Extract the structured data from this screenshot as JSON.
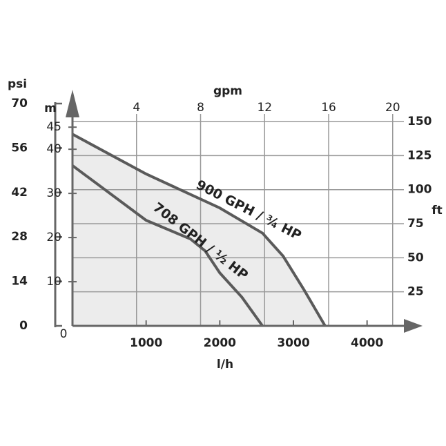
{
  "chart_data": {
    "type": "line",
    "x_label": "l/h",
    "x2_label": "gpm",
    "y_label": "m",
    "y2_label": "ft",
    "y3_label": "psi",
    "xlim": [
      0,
      4500
    ],
    "xticks": [
      0,
      1000,
      2000,
      3000,
      4000
    ],
    "x2lim": [
      0,
      20.7
    ],
    "x2ticks": [
      4,
      8,
      12,
      16,
      20
    ],
    "ylim": [
      0,
      48
    ],
    "yticks": [
      10,
      20,
      30,
      40,
      45
    ],
    "y2lim": [
      0,
      155.6
    ],
    "y2ticks": [
      25,
      50,
      75,
      100,
      125,
      150
    ],
    "y3lim": [
      0,
      70
    ],
    "y3ticks": [
      0,
      14,
      28,
      42,
      56,
      70
    ],
    "fill": "#ececec",
    "series": [
      {
        "name": "900 GPH / ¾ HP",
        "color": "#5a5a5a",
        "x": [
          0,
          1000,
          2000,
          2580,
          2860,
          3150,
          3430
        ],
        "values": [
          43.4,
          34.4,
          26.7,
          21,
          15.8,
          8,
          0
        ]
      },
      {
        "name": "708 GPH / ½ HP",
        "color": "#5a5a5a",
        "x": [
          0,
          1000,
          1600,
          1800,
          2000,
          2300,
          2580
        ],
        "values": [
          36.3,
          23.9,
          19.7,
          17,
          12,
          6.5,
          0
        ]
      }
    ]
  }
}
